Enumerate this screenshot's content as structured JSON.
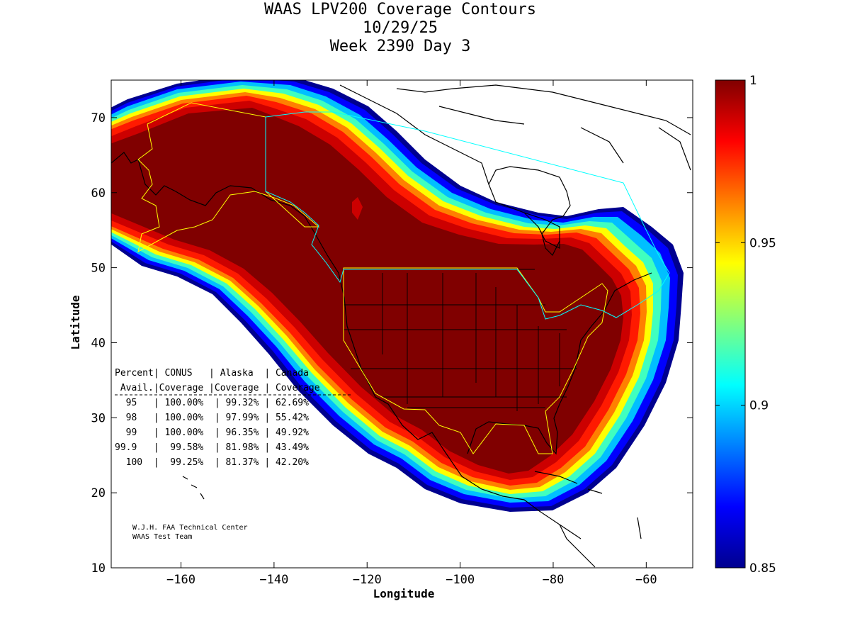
{
  "title": {
    "line1": "WAAS LPV200 Coverage Contours",
    "line2": "10/29/25",
    "line3": "Week 2390 Day 3"
  },
  "axes": {
    "xlabel": "Longitude",
    "ylabel": "Latitude",
    "xlim": [
      -175,
      -50
    ],
    "ylim": [
      10,
      75
    ],
    "xticks": [
      -160,
      -140,
      -120,
      -100,
      -80,
      -60
    ],
    "yticks": [
      10,
      20,
      30,
      40,
      50,
      60,
      70
    ]
  },
  "colorbar": {
    "range": [
      0.85,
      1
    ],
    "ticks": [
      "1",
      "0.95",
      "0.9",
      "0.85"
    ],
    "colormap": "jet",
    "low_color": "#00008f",
    "high_color": "#800000"
  },
  "coverage_table": {
    "header1": "Percent| CONUS   | Alaska  | Canada",
    "header2": " Avail.|Coverage |Coverage | Coverage",
    "rows": [
      {
        "pct": "95",
        "conus": "100.00%",
        "alaska": "99.32%",
        "canada": "62.69%"
      },
      {
        "pct": "98",
        "conus": "100.00%",
        "alaska": "97.99%",
        "canada": "55.42%"
      },
      {
        "pct": "99",
        "conus": "100.00%",
        "alaska": "96.35%",
        "canada": "49.92%"
      },
      {
        "pct": "99.9",
        "conus": "99.58%",
        "alaska": "81.98%",
        "canada": "43.49%"
      },
      {
        "pct": "100",
        "conus": "99.25%",
        "alaska": "81.37%",
        "canada": "42.20%"
      }
    ]
  },
  "credit": {
    "line1": "W.J.H. FAA Technical Center",
    "line2": "WAAS Test Team"
  },
  "chart_data": {
    "type": "heatmap",
    "title": "WAAS LPV200 Coverage Contours",
    "xlabel": "Longitude",
    "ylabel": "Latitude",
    "xlim": [
      -175,
      -50
    ],
    "ylim": [
      10,
      75
    ],
    "value_range": [
      0.85,
      1
    ],
    "coverage_region": {
      "description_points": [
        [
          -175,
          70
        ],
        [
          -170,
          72
        ],
        [
          -160,
          74
        ],
        [
          -150,
          76
        ],
        [
          -140,
          75
        ],
        [
          -130,
          74
        ],
        [
          -120,
          71
        ],
        [
          -112,
          69
        ],
        [
          -105,
          64
        ],
        [
          -98,
          61
        ],
        [
          -90,
          59
        ],
        [
          -80,
          57
        ],
        [
          -72,
          57.5
        ],
        [
          -66,
          56
        ],
        [
          -58,
          52
        ],
        [
          -54,
          47
        ],
        [
          -54,
          40
        ],
        [
          -58,
          33
        ],
        [
          -64,
          26
        ],
        [
          -72,
          20
        ],
        [
          -80,
          18
        ],
        [
          -90,
          18.5
        ],
        [
          -100,
          21
        ],
        [
          -110,
          24
        ],
        [
          -120,
          29
        ],
        [
          -128,
          35
        ],
        [
          -135,
          41
        ],
        [
          -142,
          46
        ],
        [
          -150,
          50
        ],
        [
          -160,
          52
        ],
        [
          -168,
          53
        ],
        [
          -175,
          55
        ]
      ]
    }
  }
}
